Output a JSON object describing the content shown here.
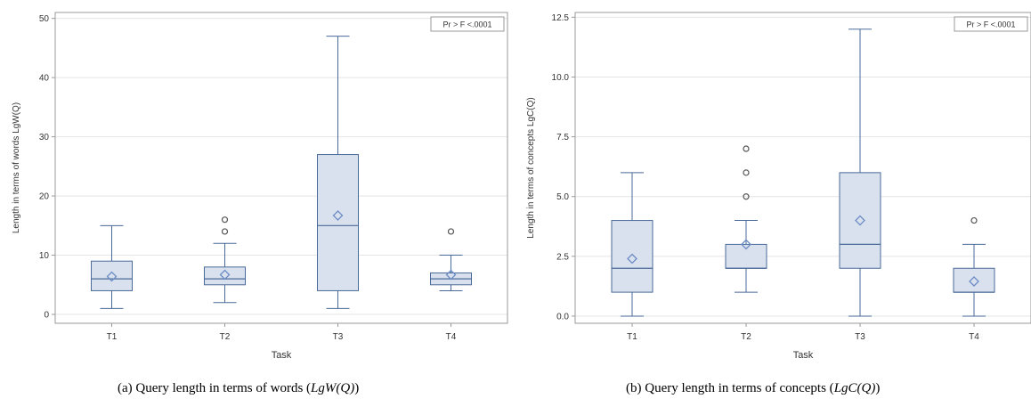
{
  "chart_data": [
    {
      "type": "box",
      "title": "",
      "xlabel": "Task",
      "ylabel": "Length in terms of words LgW(Q)",
      "ylim": [
        -1.5,
        51
      ],
      "yticks": [
        0,
        10,
        20,
        30,
        40,
        50
      ],
      "ytick_labels": [
        "0",
        "10",
        "20",
        "30",
        "40",
        "50"
      ],
      "categories": [
        "T1",
        "T2",
        "T3",
        "T4"
      ],
      "inset_label": "Pr > F  <.0001",
      "grid": true,
      "boxes": [
        {
          "category": "T1",
          "min": 1,
          "q1": 4,
          "median": 6,
          "q3": 9,
          "max": 15,
          "mean": 6.4,
          "outliers": []
        },
        {
          "category": "T2",
          "min": 2,
          "q1": 5,
          "median": 6,
          "q3": 8,
          "max": 12,
          "mean": 6.7,
          "outliers": [
            14,
            16
          ]
        },
        {
          "category": "T3",
          "min": 1,
          "q1": 4,
          "median": 15,
          "q3": 27,
          "max": 47,
          "mean": 16.7,
          "outliers": []
        },
        {
          "category": "T4",
          "min": 4,
          "q1": 5,
          "median": 6,
          "q3": 7,
          "max": 10,
          "mean": 6.7,
          "outliers": [
            14
          ]
        }
      ],
      "caption_prefix": "(a) Query length in terms of words (",
      "caption_math": "LgW(Q)",
      "caption_suffix": ")"
    },
    {
      "type": "box",
      "title": "",
      "xlabel": "Task",
      "ylabel": "Length in terms of concepts LgC(Q)",
      "ylim": [
        -0.3,
        12.7
      ],
      "yticks": [
        0,
        2.5,
        5,
        7.5,
        10,
        12.5
      ],
      "ytick_labels": [
        "0.0",
        "2.5",
        "5.0",
        "7.5",
        "10.0",
        "12.5"
      ],
      "categories": [
        "T1",
        "T2",
        "T3",
        "T4"
      ],
      "inset_label": "Pr > F  <.0001",
      "grid": true,
      "boxes": [
        {
          "category": "T1",
          "min": 0,
          "q1": 1,
          "median": 2,
          "q3": 4,
          "max": 6,
          "mean": 2.4,
          "outliers": []
        },
        {
          "category": "T2",
          "min": 1,
          "q1": 2,
          "median": 2,
          "q3": 3,
          "max": 4,
          "mean": 3.0,
          "outliers": [
            5,
            6,
            7
          ]
        },
        {
          "category": "T3",
          "min": 0,
          "q1": 2,
          "median": 3,
          "q3": 6,
          "max": 12,
          "mean": 4.0,
          "outliers": []
        },
        {
          "category": "T4",
          "min": 0,
          "q1": 1,
          "median": 1,
          "q3": 2,
          "max": 3,
          "mean": 1.45,
          "outliers": [
            4
          ]
        }
      ],
      "caption_prefix": "(b) Query length in terms of concepts (",
      "caption_math": "LgC(Q)",
      "caption_suffix": ")"
    }
  ],
  "colors": {
    "box_fill": "#d9e1ee",
    "box_stroke": "#4a6a9a",
    "median": "#4a6a9a",
    "mean_marker": "#6b8cc4",
    "outlier_stroke": "#555555",
    "grid": "#e4e4e4",
    "frame": "#9a9a9a",
    "text": "#333333"
  }
}
